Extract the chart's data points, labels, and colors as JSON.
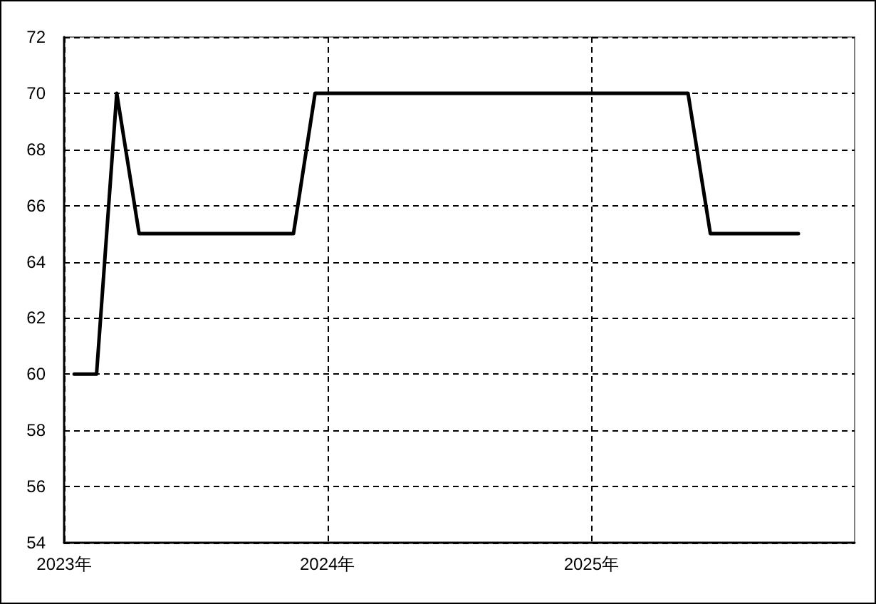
{
  "chart_data": {
    "type": "line",
    "x": [
      "2023-01-15",
      "2023-02-15",
      "2023-03-15",
      "2023-04-15",
      "2023-11-15",
      "2023-12-15",
      "2025-05-15",
      "2025-06-15",
      "2025-10-15"
    ],
    "values": [
      60,
      60,
      70,
      65,
      65,
      70,
      70,
      65,
      65
    ],
    "color": "#000000",
    "xlim": [
      "2023-01-01",
      "2026-01-01"
    ],
    "xticks": [
      {
        "value": "2023-01-01",
        "label": "2023年"
      },
      {
        "value": "2024-01-01",
        "label": "2024年"
      },
      {
        "value": "2025-01-01",
        "label": "2025年"
      }
    ],
    "ylim": [
      54,
      72
    ],
    "yticks": [
      54,
      56,
      58,
      60,
      62,
      64,
      66,
      68,
      70,
      72
    ],
    "grid": true,
    "marker": "none",
    "line_style": "solid"
  }
}
